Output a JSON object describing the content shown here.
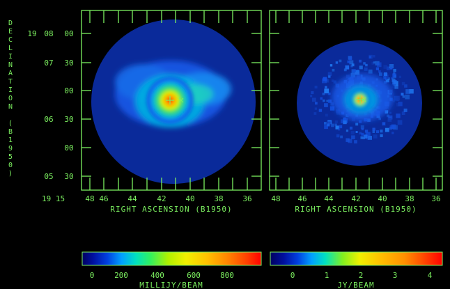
{
  "ylabel_chars": [
    "D",
    "E",
    "C",
    "L",
    "I",
    "N",
    "A",
    "T",
    "I",
    "O",
    "N",
    "",
    "(",
    "B",
    "1",
    "9",
    "5",
    "0",
    ")"
  ],
  "y_ticks": [
    {
      "h": "19",
      "m": "08",
      "s": "00"
    },
    {
      "h": "",
      "m": "07",
      "s": "30"
    },
    {
      "h": "",
      "m": "",
      "s": "00"
    },
    {
      "h": "",
      "m": "06",
      "s": "30"
    },
    {
      "h": "",
      "m": "",
      "s": "00"
    },
    {
      "h": "",
      "m": "05",
      "s": "30"
    }
  ],
  "x_prefix": "19 15",
  "x_ticks": [
    "48",
    "46",
    "44",
    "42",
    "40",
    "38",
    "36"
  ],
  "xlabel": "RIGHT ASCENSION (B1950)",
  "left_bar": {
    "ticks": [
      "0",
      "200",
      "400",
      "600",
      "800"
    ],
    "unit": "MILLIJY/BEAM"
  },
  "right_bar": {
    "ticks": [
      "0",
      "1",
      "2",
      "3",
      "4"
    ],
    "unit": "JY/BEAM"
  },
  "colors": {
    "axis": "#7cf060",
    "background": "#000000",
    "disk": "#0a2a9a"
  }
}
